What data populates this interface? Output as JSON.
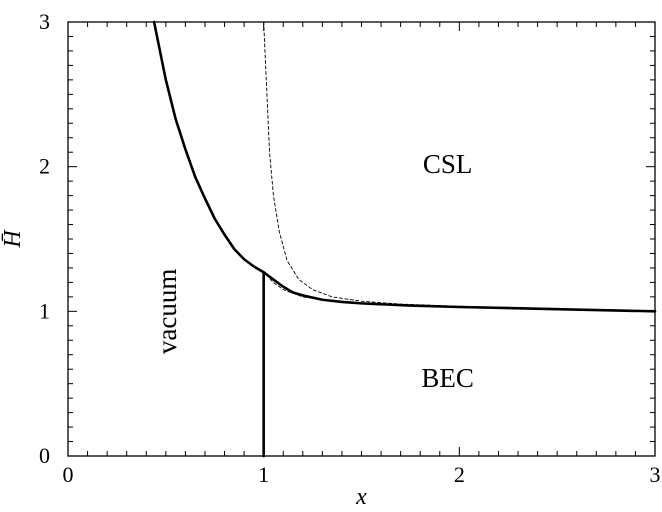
{
  "chart_data": {
    "type": "line",
    "title": "",
    "xlabel": "x",
    "ylabel": "H̄",
    "xlim": [
      0,
      3
    ],
    "ylim": [
      0,
      3
    ],
    "grid": false,
    "x_ticks": [
      0,
      1,
      2,
      3
    ],
    "y_ticks": [
      0,
      1,
      2,
      3
    ],
    "x_tick_labels": [
      "0",
      "1",
      "2",
      "3"
    ],
    "y_tick_labels": [
      "0",
      "1",
      "2",
      "3"
    ],
    "x_minor_step": 0.1,
    "y_minor_step": 0.1,
    "series": [
      {
        "style": "solid-thick",
        "points": [
          [
            0.44,
            3.0
          ],
          [
            0.5,
            2.6
          ],
          [
            0.55,
            2.33
          ],
          [
            0.6,
            2.12
          ],
          [
            0.65,
            1.93
          ],
          [
            0.7,
            1.78
          ],
          [
            0.75,
            1.64
          ],
          [
            0.8,
            1.53
          ],
          [
            0.85,
            1.43
          ],
          [
            0.9,
            1.36
          ],
          [
            0.95,
            1.31
          ],
          [
            1.0,
            1.27
          ]
        ]
      },
      {
        "style": "solid-thick",
        "points": [
          [
            1.0,
            1.27
          ],
          [
            1.05,
            1.22
          ],
          [
            1.1,
            1.17
          ],
          [
            1.15,
            1.13
          ],
          [
            1.2,
            1.11
          ],
          [
            1.3,
            1.08
          ],
          [
            1.4,
            1.065
          ],
          [
            1.5,
            1.055
          ],
          [
            1.75,
            1.04
          ],
          [
            2.0,
            1.03
          ],
          [
            2.5,
            1.015
          ],
          [
            3.0,
            1.0
          ]
        ]
      },
      {
        "style": "solid-thick",
        "points": [
          [
            1.0,
            0.0
          ],
          [
            1.0,
            1.27
          ]
        ]
      },
      {
        "style": "dashed-thin",
        "points": [
          [
            1.0,
            3.0
          ],
          [
            1.01,
            2.7
          ],
          [
            1.02,
            2.4
          ],
          [
            1.03,
            2.1
          ],
          [
            1.05,
            1.8
          ],
          [
            1.08,
            1.55
          ],
          [
            1.12,
            1.35
          ],
          [
            1.18,
            1.22
          ],
          [
            1.25,
            1.15
          ],
          [
            1.35,
            1.1
          ],
          [
            1.5,
            1.07
          ],
          [
            1.7,
            1.05
          ],
          [
            2.0,
            1.035
          ],
          [
            2.5,
            1.02
          ],
          [
            3.0,
            1.0
          ]
        ]
      },
      {
        "style": "dashed-thin",
        "points": [
          [
            0.97,
            1.3
          ],
          [
            1.0,
            1.27
          ],
          [
            1.05,
            1.2
          ],
          [
            1.1,
            1.15
          ],
          [
            1.2,
            1.1
          ],
          [
            1.3,
            1.08
          ],
          [
            1.45,
            1.065
          ]
        ]
      }
    ],
    "annotations": [
      {
        "text": "CSL",
        "x": 1.94,
        "y": 2.0,
        "rotate": 0
      },
      {
        "text": "BEC",
        "x": 1.94,
        "y": 0.52,
        "rotate": 0
      },
      {
        "text": "vacuum",
        "x": 0.52,
        "y": 1.0,
        "rotate": -90
      }
    ]
  }
}
